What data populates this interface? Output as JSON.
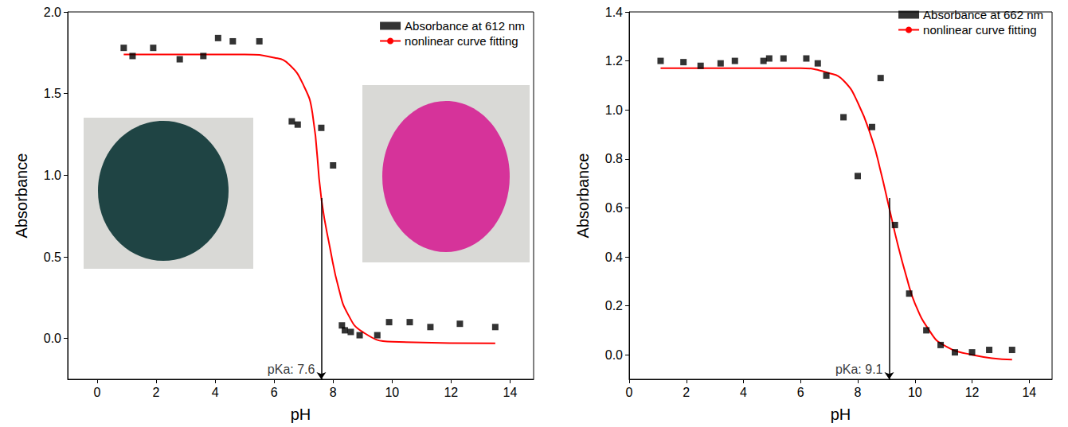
{
  "chart_data": [
    {
      "type": "scatter",
      "x_label": "pH",
      "y_label": "Absorbance",
      "xlim": [
        -1,
        14.8
      ],
      "xticks": [
        0,
        2,
        4,
        6,
        8,
        10,
        12,
        14
      ],
      "ylim": [
        -0.25,
        2.0
      ],
      "yticks": [
        {
          "value": 0,
          "label": "0.0"
        },
        {
          "value": 0.5,
          "label": "0.5"
        },
        {
          "value": 1.0,
          "label": "1.0"
        },
        {
          "value": 1.5,
          "label": "1.5"
        },
        {
          "value": 2.0,
          "label": "2.0"
        }
      ],
      "grid": false,
      "legend": "upper right",
      "series": [
        {
          "name": "Absorbance at 612 nm",
          "type": "scatter",
          "color": "#000000",
          "marker": "square",
          "x": [
            0.9,
            1.2,
            1.9,
            2.8,
            3.6,
            4.1,
            4.6,
            5.5,
            6.6,
            6.8,
            7.6,
            8.0,
            8.3,
            8.4,
            8.6,
            8.9,
            9.5,
            9.9,
            10.6,
            11.3,
            12.3,
            13.5
          ],
          "values": [
            1.78,
            1.73,
            1.78,
            1.71,
            1.73,
            1.84,
            1.82,
            1.82,
            1.33,
            1.31,
            1.29,
            1.06,
            0.08,
            0.05,
            0.04,
            0.02,
            0.02,
            0.1,
            0.1,
            0.07,
            0.09,
            0.07
          ]
        },
        {
          "name": "nonlinear curve fitting",
          "type": "line",
          "color": "#ff0000",
          "line_style": "solid",
          "x": [
            0.9,
            5.0,
            6.0,
            6.5,
            7.0,
            7.3,
            7.6,
            7.9,
            8.2,
            8.5,
            9.0,
            10.0,
            13.5
          ],
          "values": [
            1.74,
            1.74,
            1.72,
            1.68,
            1.55,
            1.38,
            0.86,
            0.55,
            0.3,
            0.15,
            0.04,
            -0.02,
            -0.03
          ]
        }
      ],
      "annotations": [
        {
          "text": "pKa: 7.6",
          "x": 7.6,
          "y": 0.86
        }
      ]
    },
    {
      "type": "scatter",
      "x_label": "pH",
      "y_label": "Absorbance",
      "xlim": [
        0,
        14.8
      ],
      "xticks": [
        0,
        2,
        4,
        6,
        8,
        10,
        12,
        14
      ],
      "ylim": [
        -0.1,
        1.4
      ],
      "yticks": [
        {
          "value": 0,
          "label": "0.0"
        },
        {
          "value": 0.2,
          "label": "0.2"
        },
        {
          "value": 0.4,
          "label": "0.4"
        },
        {
          "value": 0.6,
          "label": "0.6"
        },
        {
          "value": 0.8,
          "label": "0.8"
        },
        {
          "value": 1.0,
          "label": "1.0"
        },
        {
          "value": 1.2,
          "label": "1.2"
        },
        {
          "value": 1.4,
          "label": "1.4"
        }
      ],
      "grid": false,
      "legend": "upper right",
      "series": [
        {
          "name": "Absorbance at 662 nm",
          "type": "scatter",
          "color": "#000000",
          "marker": "square",
          "x": [
            1.1,
            1.9,
            2.5,
            3.2,
            3.7,
            4.7,
            4.9,
            5.4,
            6.2,
            6.6,
            6.9,
            7.5,
            8.0,
            8.5,
            8.8,
            9.3,
            9.8,
            10.4,
            10.9,
            11.4,
            12.0,
            12.6,
            13.4
          ],
          "values": [
            1.2,
            1.195,
            1.18,
            1.19,
            1.2,
            1.2,
            1.21,
            1.21,
            1.21,
            1.19,
            1.14,
            0.97,
            0.73,
            0.93,
            1.13,
            0.53,
            0.25,
            0.1,
            0.04,
            0.01,
            0.01,
            0.02,
            0.02
          ]
        },
        {
          "name": "nonlinear curve fitting",
          "type": "line",
          "color": "#ff0000",
          "line_style": "solid",
          "x": [
            1.1,
            6.0,
            7.0,
            7.5,
            8.0,
            8.5,
            8.8,
            9.1,
            9.4,
            9.7,
            10.0,
            10.5,
            11.0,
            12.0,
            13.4
          ],
          "values": [
            1.17,
            1.17,
            1.15,
            1.12,
            1.03,
            0.88,
            0.75,
            0.6,
            0.45,
            0.32,
            0.21,
            0.1,
            0.04,
            0.0,
            -0.02
          ]
        }
      ],
      "annotations": [
        {
          "text": "pKa: 9.1",
          "x": 9.1,
          "y": 0.64
        }
      ]
    }
  ]
}
